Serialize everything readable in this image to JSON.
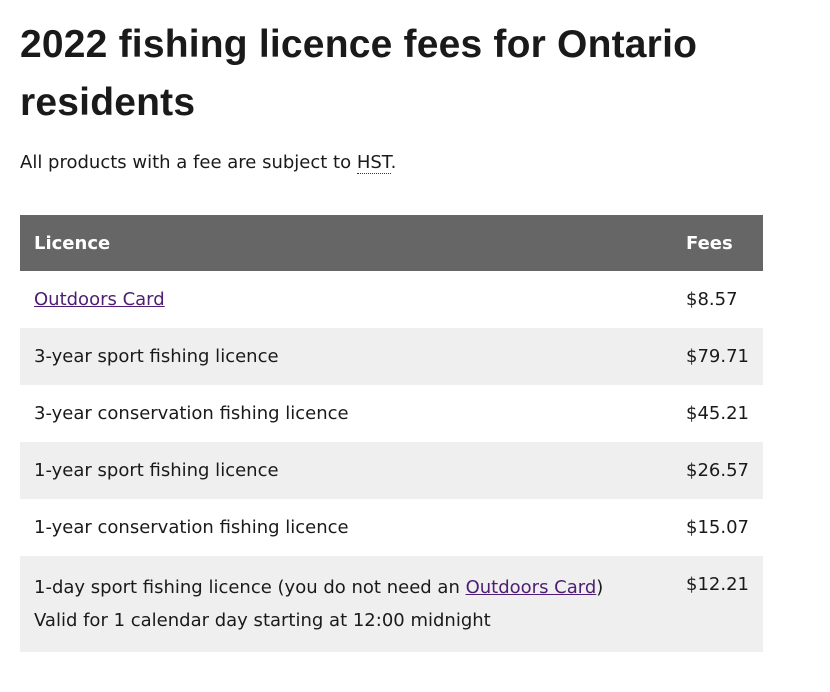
{
  "header": {
    "title": "2022 fishing licence fees for Ontario residents"
  },
  "intro": {
    "text": "All products with a fee are subject to ",
    "abbr": "HST",
    "end": "."
  },
  "table": {
    "columns": [
      "Licence",
      "Fees"
    ],
    "rows": [
      {
        "link": "Outdoors Card",
        "fee": "$8.57"
      },
      {
        "licence": "3-year sport fishing licence",
        "fee": "$79.71"
      },
      {
        "licence": "3-year conservation fishing licence",
        "fee": "$45.21"
      },
      {
        "licence": "1-year sport fishing licence",
        "fee": "$26.57"
      },
      {
        "licence": "1-year conservation fishing licence",
        "fee": "$15.07"
      },
      {
        "licence": "1-day sport fishing licence (you do not need an ",
        "link": "Outdoors Card",
        "licence_end": ")",
        "note": "Valid for 1 calendar day starting at 12:00 midnight",
        "fee": "$12.21"
      }
    ]
  }
}
